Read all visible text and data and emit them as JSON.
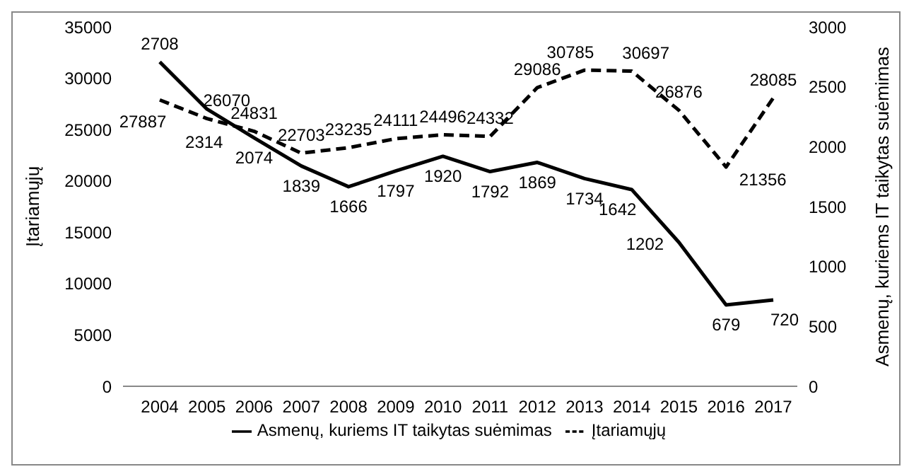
{
  "chart_data": {
    "type": "line",
    "xlabel": null,
    "ylabel": "Įtariamųjų",
    "y2label": "Asmenų, kuriems IT taikytas suėmimas",
    "categories": [
      "2004",
      "2005",
      "2006",
      "2007",
      "2008",
      "2009",
      "2010",
      "2011",
      "2012",
      "2013",
      "2014",
      "2015",
      "2016",
      "2017"
    ],
    "series": [
      {
        "name": "Įtariamųjų",
        "color": "#000000",
        "line_style": "dashed",
        "values": [
          27887,
          26070,
          24831,
          22703,
          23235,
          24111,
          24496,
          24332,
          29086,
          30785,
          30697,
          26876,
          21356,
          28085
        ]
      },
      {
        "name": "Asmenų, kuriems IT taikytas suėmimas",
        "color": "#000000",
        "line_style": "solid",
        "axis": "y2",
        "values": [
          2708,
          2314,
          2074,
          1839,
          1666,
          1797,
          1920,
          1792,
          1869,
          1734,
          1642,
          1202,
          679,
          720
        ]
      }
    ],
    "ylim": [
      0,
      35000
    ],
    "yticks": [
      0,
      5000,
      10000,
      15000,
      20000,
      25000,
      30000,
      35000
    ],
    "y2lim": [
      0,
      3000
    ],
    "y2ticks": [
      0,
      500,
      1000,
      1500,
      2000,
      2500,
      3000
    ],
    "data_labels": true,
    "grid": false,
    "legend": "bottom"
  }
}
